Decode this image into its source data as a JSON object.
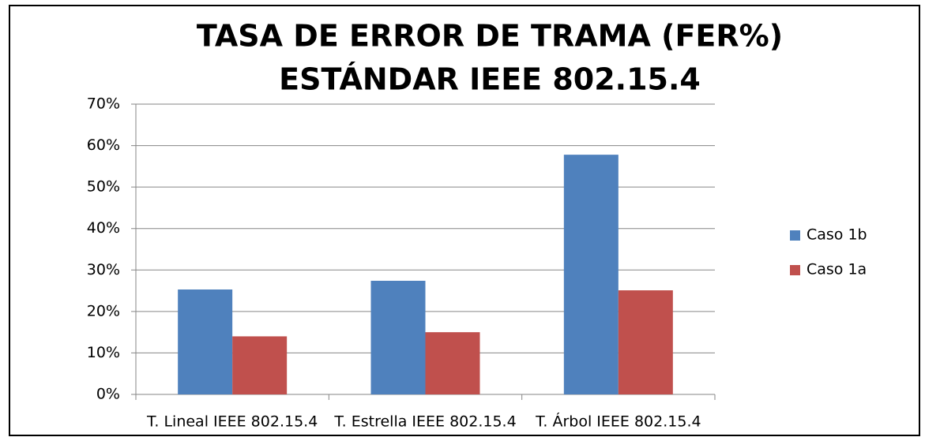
{
  "chart_data": {
    "type": "bar",
    "title": [
      "TASA DE ERROR DE TRAMA (FER%)",
      "ESTÁNDAR IEEE 802.15.4"
    ],
    "categories": [
      "T. Lineal IEEE 802.15.4",
      "T. Estrella IEEE 802.15.4",
      "T. Árbol IEEE 802.15.4"
    ],
    "series": [
      {
        "name": "Caso 1b",
        "color": "#4f81bd",
        "values": [
          25.3,
          27.4,
          57.8
        ]
      },
      {
        "name": "Caso 1a",
        "color": "#c0504d",
        "values": [
          14,
          15,
          25.1
        ]
      }
    ],
    "ylim": [
      0,
      70
    ],
    "yticks": [
      {
        "value": 0,
        "label": "0%"
      },
      {
        "value": 10,
        "label": "10%"
      },
      {
        "value": 20,
        "label": "20%"
      },
      {
        "value": 30,
        "label": "30%"
      },
      {
        "value": 40,
        "label": "40%"
      },
      {
        "value": 50,
        "label": "50%"
      },
      {
        "value": 60,
        "label": "60%"
      },
      {
        "value": 70,
        "label": "70%"
      }
    ],
    "grid": true,
    "legend": "right"
  }
}
